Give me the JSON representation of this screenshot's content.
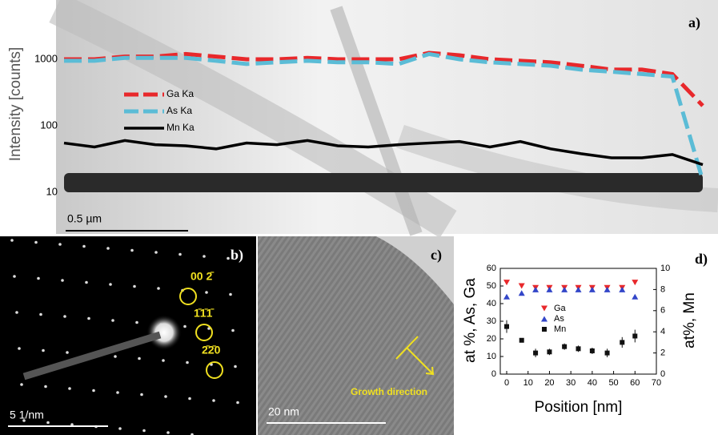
{
  "chart_data": [
    {
      "type": "line",
      "panel_label": "a)",
      "ylabel": "Intensity [counts]",
      "yscale": "log",
      "ylim": [
        5,
        5000
      ],
      "yticks": [
        10,
        100,
        1000
      ],
      "scale_bar": "0.5 µm",
      "categories": [
        null,
        null,
        null,
        null,
        null,
        null,
        null,
        null,
        null,
        null,
        null,
        null,
        null,
        null,
        null,
        null,
        null,
        null,
        null,
        null,
        null,
        null
      ],
      "series": [
        {
          "name": "Ga Ka",
          "color": "#e8282b",
          "style": "dashed",
          "values": [
            1000,
            1000,
            1100,
            1100,
            1200,
            1100,
            1000,
            1000,
            1050,
            1000,
            1000,
            1000,
            1250,
            1150,
            1000,
            950,
            900,
            800,
            700,
            700,
            600,
            200
          ]
        },
        {
          "name": "As Ka",
          "color": "#5bbcd6",
          "style": "dashed",
          "values": [
            950,
            950,
            1050,
            1050,
            1050,
            950,
            850,
            900,
            950,
            900,
            900,
            850,
            1200,
            1000,
            900,
            850,
            800,
            700,
            650,
            600,
            550,
            15
          ]
        },
        {
          "name": "Mn Ka",
          "color": "#000000",
          "style": "solid",
          "values": [
            55,
            48,
            60,
            52,
            50,
            45,
            55,
            52,
            60,
            50,
            48,
            52,
            55,
            58,
            48,
            58,
            45,
            38,
            33,
            33,
            37,
            26
          ]
        }
      ]
    },
    {
      "type": "scatter",
      "panel_label": "d)",
      "xlabel": "Position [nm]",
      "ylabel": "at %, As, Ga",
      "y2label": "at%, Mn",
      "xlim": [
        -3,
        70
      ],
      "xticks": [
        0,
        10,
        20,
        30,
        40,
        50,
        60,
        70
      ],
      "ylim": [
        0,
        60
      ],
      "yticks": [
        0,
        10,
        20,
        30,
        40,
        50,
        60
      ],
      "y2lim": [
        0,
        10
      ],
      "y2ticks": [
        0,
        2,
        4,
        6,
        8,
        10
      ],
      "x": [
        0,
        7,
        13.5,
        20,
        27,
        33.5,
        40,
        47,
        54,
        60
      ],
      "series": [
        {
          "name": "Ga",
          "color": "#e8282b",
          "marker": "triangle-down",
          "values": [
            52,
            50,
            49,
            49,
            49,
            49,
            49,
            49,
            49,
            52
          ]
        },
        {
          "name": "As",
          "color": "#3346c8",
          "marker": "triangle-up",
          "values": [
            44,
            46,
            48,
            48,
            48,
            48,
            48,
            48,
            48,
            44
          ]
        },
        {
          "name": "Mn",
          "color": "#111111",
          "marker": "square",
          "axis": "y2",
          "values": [
            4.5,
            3.2,
            2.0,
            2.1,
            2.6,
            2.4,
            2.2,
            2.0,
            3.0,
            3.6
          ],
          "errors": [
            0.6,
            0.2,
            0.4,
            0.3,
            0.3,
            0.3,
            0.3,
            0.4,
            0.5,
            0.6
          ]
        }
      ]
    }
  ],
  "diffraction": {
    "panel_label": "b)",
    "scale_bar": "5 1/nm",
    "spots": [
      "00 2̄",
      "1̄1̄1̄",
      "2̄2̄0"
    ]
  },
  "hrtem": {
    "panel_label": "c)",
    "scale_bar": "20 nm",
    "annotation": "Growth direction"
  }
}
